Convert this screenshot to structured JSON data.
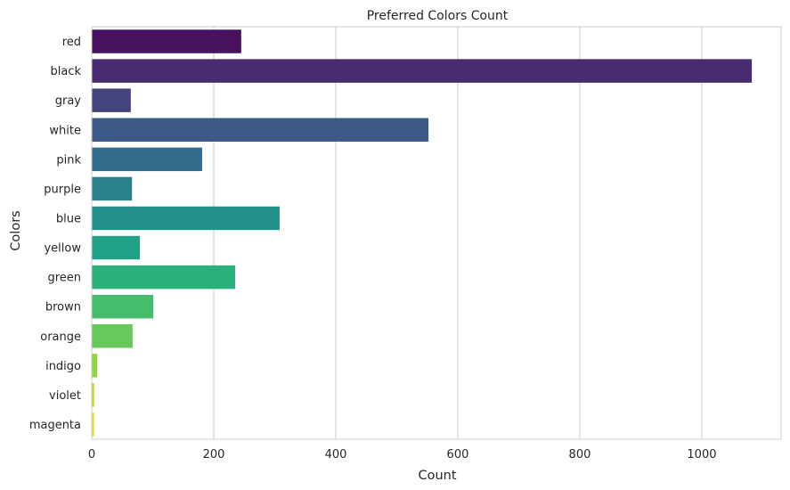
{
  "chart_data": {
    "type": "bar",
    "orientation": "horizontal",
    "title": "Preferred Colors Count",
    "xlabel": "Count",
    "ylabel": "Colors",
    "categories": [
      "red",
      "black",
      "gray",
      "white",
      "pink",
      "purple",
      "blue",
      "yellow",
      "green",
      "brown",
      "orange",
      "indigo",
      "violet",
      "magenta"
    ],
    "values": [
      245,
      1082,
      64,
      552,
      181,
      66,
      308,
      79,
      235,
      101,
      67,
      9,
      4,
      4
    ],
    "xlim": [
      0,
      1130
    ],
    "xticks": [
      0,
      200,
      400,
      600,
      800,
      1000
    ],
    "grid": true,
    "legend": "none",
    "colors": [
      "#47115f",
      "#482c72",
      "#43447e",
      "#3b5a87",
      "#326e8b",
      "#2b808e",
      "#25918c",
      "#21a286",
      "#2bb07c",
      "#45bd6b",
      "#66c959",
      "#8ed53e",
      "#b9dd21",
      "#e1e320"
    ]
  }
}
